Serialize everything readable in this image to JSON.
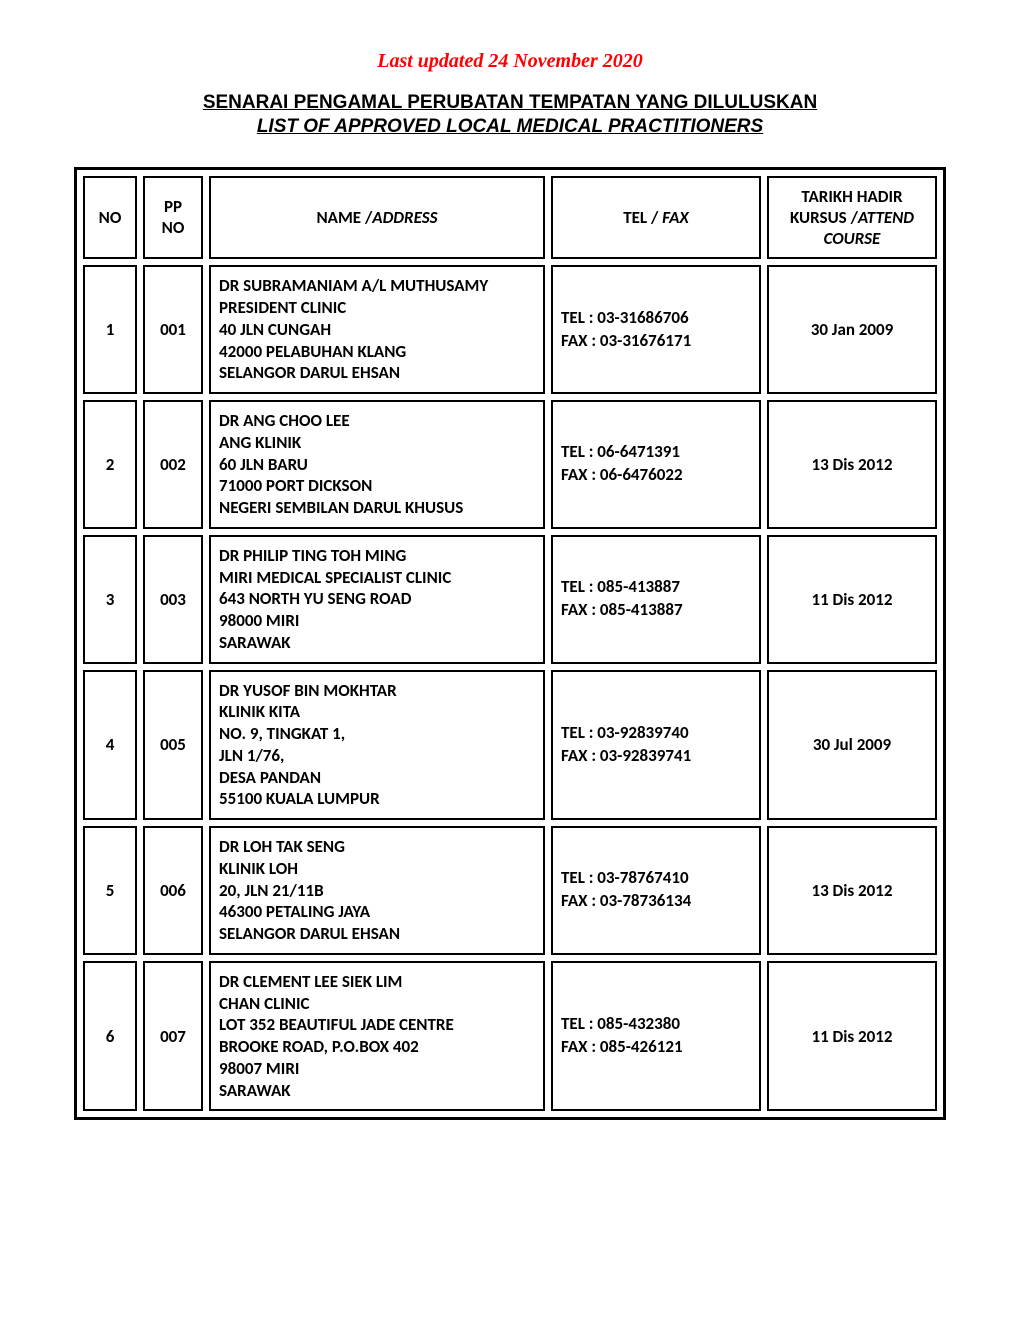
{
  "updated_line": "Last updated 24 November 2020",
  "title_line1": "SENARAI PENGAMAL PERUBATAN TEMPATAN YANG DILULUSKAN",
  "title_line2": "LIST OF APPROVED LOCAL MEDICAL PRACTITIONERS",
  "headers": {
    "no": "NO",
    "pp_l1": "PP",
    "pp_l2": "NO",
    "name_l1": "NAME /",
    "name_l2": "ADDRESS",
    "tel_l1": "TEL / ",
    "tel_l2": "FAX",
    "date_l1": "TARIKH HADIR",
    "date_l2a": "KURSUS /",
    "date_l2b": "ATTEND",
    "date_l3": "COURSE"
  },
  "rows": [
    {
      "no": "1",
      "pp": "001",
      "name_lines": [
        "DR SUBRAMANIAM A/L MUTHUSAMY",
        "PRESIDENT CLINIC",
        "40 JLN CUNGAH",
        "42000 PELABUHAN KLANG",
        "SELANGOR DARUL EHSAN"
      ],
      "tel": "TEL : 03-31686706",
      "fax": "FAX : 03-31676171",
      "date": "30 Jan 2009"
    },
    {
      "no": "2",
      "pp": "002",
      "name_lines": [
        "DR ANG CHOO LEE",
        "ANG KLINIK",
        "60 JLN BARU",
        "71000 PORT DICKSON",
        "NEGERI SEMBILAN DARUL KHUSUS"
      ],
      "tel": "TEL  : 06-6471391",
      "fax": "FAX : 06-6476022",
      "date": "13 Dis 2012"
    },
    {
      "no": "3",
      "pp": "003",
      "name_lines": [
        "DR PHILIP TING TOH MING",
        "MIRI MEDICAL SPECIALIST CLINIC",
        "643 NORTH YU SENG ROAD",
        "98000 MIRI",
        "SARAWAK"
      ],
      "tel": "TEL  : 085-413887",
      "fax": "FAX : 085-413887",
      "date": "11 Dis 2012"
    },
    {
      "no": "4",
      "pp": "005",
      "name_lines": [
        "DR YUSOF BIN MOKHTAR",
        "KLINIK KITA",
        "NO. 9, TINGKAT 1,",
        "JLN 1/76,",
        "DESA PANDAN",
        "55100 KUALA LUMPUR"
      ],
      "tel": "TEL : 03-92839740",
      "fax": "FAX : 03-92839741",
      "date": "30 Jul 2009"
    },
    {
      "no": "5",
      "pp": "006",
      "name_lines": [
        "DR LOH TAK SENG",
        "KLINIK LOH",
        "20, JLN 21/11B",
        "46300 PETALING JAYA",
        "SELANGOR DARUL EHSAN"
      ],
      "tel": "TEL : 03-78767410",
      "fax": "FAX : 03-78736134",
      "date": "13 Dis 2012"
    },
    {
      "no": "6",
      "pp": "007",
      "name_lines": [
        "DR CLEMENT LEE SIEK LIM",
        "CHAN CLINIC",
        "LOT 352 BEAUTIFUL JADE CENTRE",
        "BROOKE ROAD, P.O.BOX 402",
        "98007 MIRI",
        "SARAWAK"
      ],
      "tel": "TEL  : 085-432380",
      "fax": "FAX : 085-426121",
      "date": "11 Dis 2012"
    }
  ]
}
